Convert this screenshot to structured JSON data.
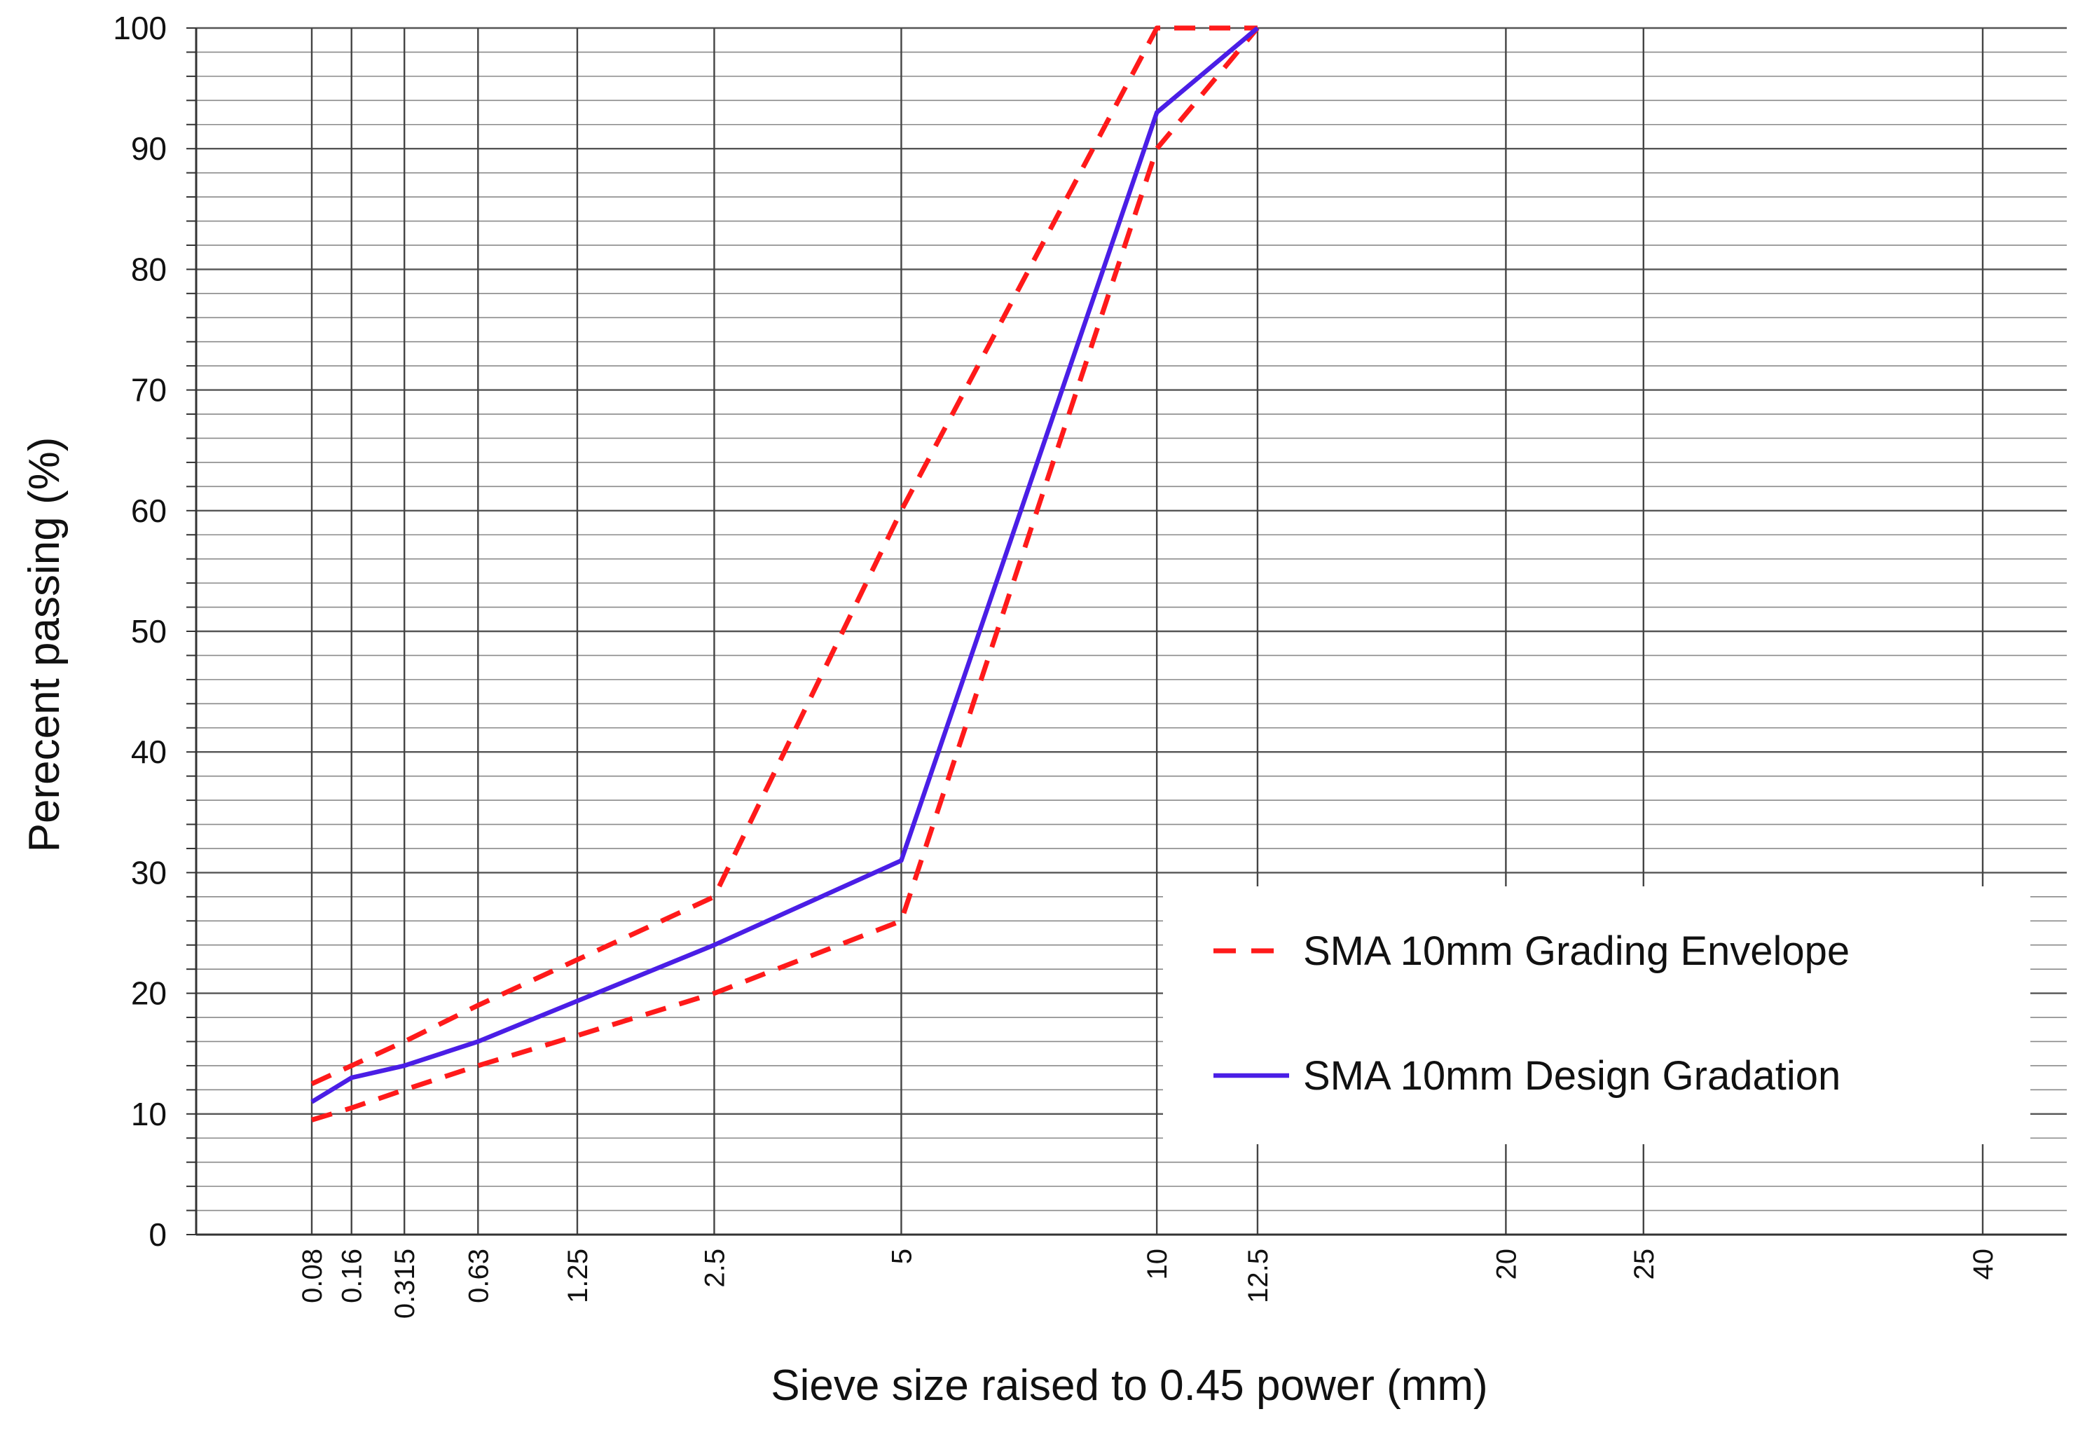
{
  "chart_data": {
    "type": "line",
    "title": "",
    "xlabel": "Sieve size raised to 0.45 power (mm)",
    "ylabel": "Perecent passing (%)",
    "x_scale": "power-0.45",
    "ylim": [
      0,
      100
    ],
    "y_major_ticks": [
      0,
      10,
      20,
      30,
      40,
      50,
      60,
      70,
      80,
      90,
      100
    ],
    "y_minor_step": 2,
    "x_ticks": [
      {
        "value": 0.08,
        "label": "0.08"
      },
      {
        "value": 0.16,
        "label": "0.16"
      },
      {
        "value": 0.315,
        "label": "0.315"
      },
      {
        "value": 0.63,
        "label": "0.63"
      },
      {
        "value": 1.25,
        "label": "1.25"
      },
      {
        "value": 2.5,
        "label": "2.5"
      },
      {
        "value": 5,
        "label": "5"
      },
      {
        "value": 10,
        "label": "10"
      },
      {
        "value": 12.5,
        "label": "12.5"
      },
      {
        "value": 20,
        "label": "20"
      },
      {
        "value": 25,
        "label": "25"
      },
      {
        "value": 40,
        "label": "40"
      }
    ],
    "grid": true,
    "legend_position": "bottom-right",
    "series": [
      {
        "name": "SMA 10mm Grading Envelope",
        "style": "dashed",
        "color": "#ff1a1a",
        "points": [
          [
            0.08,
            12.5
          ],
          [
            0.16,
            14
          ],
          [
            0.315,
            16
          ],
          [
            0.63,
            19
          ],
          [
            2.5,
            28
          ],
          [
            5,
            60
          ],
          [
            10,
            100
          ],
          [
            12.5,
            100
          ]
        ]
      },
      {
        "name": "SMA 10mm Grading Envelope",
        "style": "dashed",
        "color": "#ff1a1a",
        "show_in_legend": false,
        "points": [
          [
            0.08,
            9.5
          ],
          [
            0.16,
            10.5
          ],
          [
            0.315,
            12
          ],
          [
            0.63,
            14
          ],
          [
            1.25,
            16.5
          ],
          [
            2.5,
            20
          ],
          [
            5,
            26
          ],
          [
            10,
            90
          ],
          [
            12.5,
            100
          ]
        ]
      },
      {
        "name": "SMA 10mm Design Gradation",
        "style": "solid",
        "color": "#4a1ee6",
        "points": [
          [
            0.08,
            11
          ],
          [
            0.16,
            13
          ],
          [
            0.315,
            14
          ],
          [
            0.63,
            16
          ],
          [
            2.5,
            24
          ],
          [
            5,
            31
          ],
          [
            10,
            93
          ],
          [
            12.5,
            100
          ]
        ]
      }
    ]
  }
}
